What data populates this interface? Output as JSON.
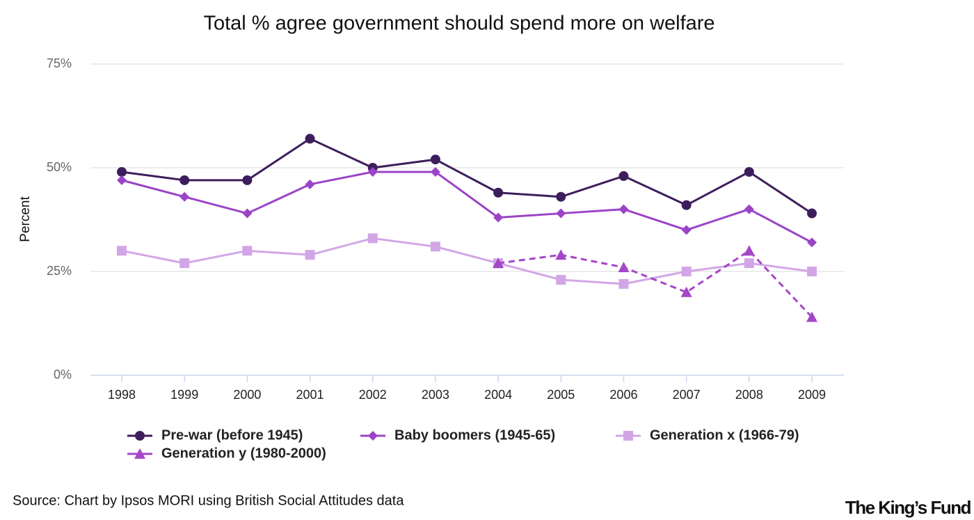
{
  "chart_data": {
    "type": "line",
    "title": "Total % agree government should spend more on welfare",
    "y_label": "Percent",
    "categories": [
      "1998",
      "1999",
      "2000",
      "2001",
      "2002",
      "2003",
      "2004",
      "2005",
      "2006",
      "2007",
      "2008",
      "2009"
    ],
    "series": [
      {
        "name": "Pre-war (before 1945)",
        "color": "#3d1e5c",
        "marker": "circle",
        "dashed": false,
        "values": [
          49,
          47,
          47,
          57,
          50,
          52,
          44,
          43,
          48,
          41,
          49,
          39
        ]
      },
      {
        "name": "Baby boomers (1945-65)",
        "color": "#9b44c8",
        "marker": "diamond",
        "dashed": false,
        "values": [
          47,
          43,
          39,
          46,
          49,
          49,
          38,
          39,
          40,
          35,
          40,
          32
        ]
      },
      {
        "name": "Generation x (1966-79)",
        "color": "#d2a6e6",
        "marker": "square",
        "dashed": false,
        "values": [
          30,
          27,
          30,
          29,
          33,
          31,
          27,
          23,
          22,
          25,
          27,
          25
        ]
      },
      {
        "name": "Generation y (1980-2000)",
        "color": "#a546c8",
        "marker": "triangle",
        "dashed": true,
        "values": [
          null,
          null,
          null,
          null,
          null,
          null,
          27,
          29,
          26,
          20,
          30,
          14
        ]
      }
    ],
    "ylim": [
      0,
      75
    ],
    "yticks": [
      {
        "value": 0,
        "label": "0%"
      },
      {
        "value": 25,
        "label": "25%"
      },
      {
        "value": 50,
        "label": "50%"
      },
      {
        "value": 75,
        "label": "75%"
      }
    ],
    "grid": true,
    "source": "Source: Chart by Ipsos MORI using British Social Attitudes data",
    "logo": "The King’s Fund"
  }
}
